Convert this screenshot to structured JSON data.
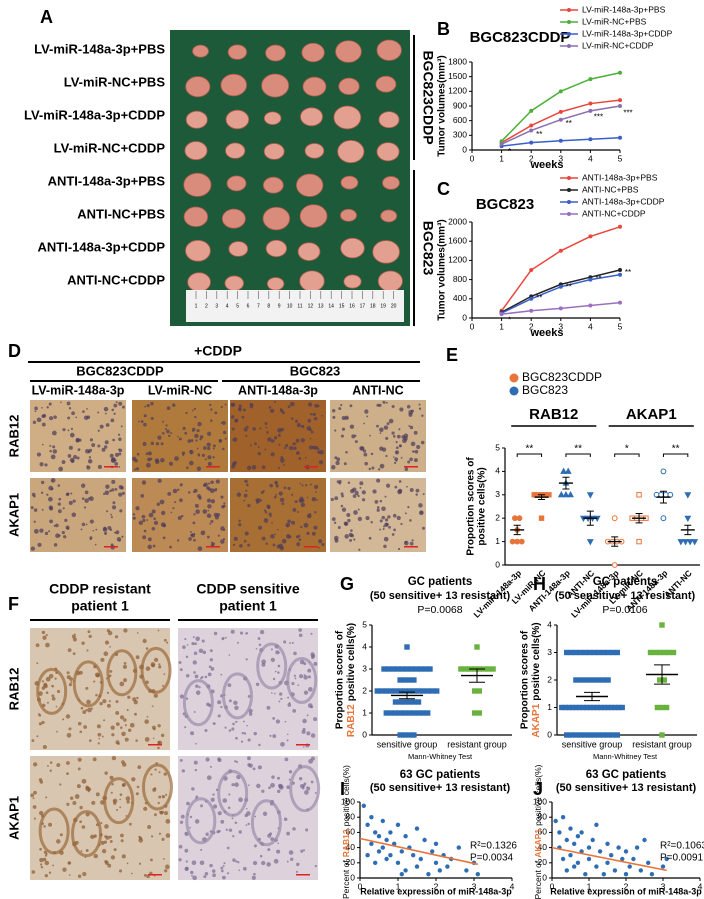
{
  "panel_letters": [
    "A",
    "B",
    "C",
    "D",
    "E",
    "F",
    "G",
    "H",
    "I",
    "J"
  ],
  "panel_a": {
    "rows": [
      "LV-miR-148a-3p+PBS",
      "LV-miR-NC+PBS",
      "LV-miR-148a-3p+CDDP",
      "LV-miR-NC+CDDP",
      "ANTI-148a-3p+PBS",
      "ANTI-NC+PBS",
      "ANTI-148a-3p+CDDP",
      "ANTI-NC+CDDP"
    ],
    "groups": [
      "BGC823CDDP",
      "BGC823"
    ],
    "ruler": [
      1,
      2,
      3,
      4,
      5,
      6,
      7,
      8,
      9,
      10,
      11,
      12,
      13,
      14,
      15,
      16,
      17,
      18,
      19,
      20
    ]
  },
  "panel_d": {
    "treatment": "+CDDP",
    "groups": [
      "BGC823CDDP",
      "BGC823"
    ],
    "columns": [
      "LV-miR-148a-3p",
      "LV-miR-NC",
      "ANTI-148a-3p",
      "ANTI-NC"
    ],
    "rows": [
      "RAB12",
      "AKAP1"
    ]
  },
  "panel_f": {
    "columns": [
      [
        "CDDP resistant",
        "patient 1"
      ],
      [
        "CDDP sensitive",
        "patient 1"
      ]
    ],
    "rows": [
      "RAB12",
      "AKAP1"
    ]
  },
  "chart_data": [
    {
      "type": "line",
      "title": "BGC823CDDP",
      "xlabel": "weeks",
      "ylabel": "Tumor volumes(mm³)",
      "x": [
        1,
        2,
        3,
        4,
        5
      ],
      "xlim": [
        0,
        5
      ],
      "xticks": [
        0,
        1,
        2,
        3,
        4,
        5
      ],
      "ylim": [
        0,
        1800
      ],
      "yticks": [
        0,
        300,
        600,
        900,
        1200,
        1500,
        1800
      ],
      "series": [
        {
          "name": "LV-miR-148a-3p+PBS",
          "color": "#e8473b",
          "values": [
            150,
            500,
            780,
            950,
            1020
          ]
        },
        {
          "name": "LV-miR-NC+PBS",
          "color": "#4caf3a",
          "values": [
            180,
            800,
            1200,
            1450,
            1580
          ]
        },
        {
          "name": "LV-miR-148a-3p+CDDP",
          "color": "#3a5fc8",
          "values": [
            80,
            150,
            190,
            220,
            250
          ]
        },
        {
          "name": "LV-miR-NC+CDDP",
          "color": "#8a6fb0",
          "values": [
            120,
            400,
            620,
            800,
            900
          ]
        }
      ],
      "annotations": [
        "*",
        "**",
        "**",
        "***",
        "***"
      ]
    },
    {
      "type": "line",
      "title": "BGC823",
      "xlabel": "weeks",
      "ylabel": "Tumor volumes(mm³)",
      "x": [
        1,
        2,
        3,
        4,
        5
      ],
      "xlim": [
        0,
        5
      ],
      "xticks": [
        0,
        1,
        2,
        3,
        4,
        5
      ],
      "ylim": [
        0,
        2000
      ],
      "yticks": [
        0,
        400,
        800,
        1200,
        1600,
        2000
      ],
      "series": [
        {
          "name": "ANTI-148a-3p+PBS",
          "color": "#e8473b",
          "values": [
            150,
            1000,
            1400,
            1700,
            1900
          ]
        },
        {
          "name": "ANTI-NC+PBS",
          "color": "#222222",
          "values": [
            120,
            450,
            700,
            850,
            1000
          ]
        },
        {
          "name": "ANTI-148a-3p+CDDP",
          "color": "#3a5fc8",
          "values": [
            100,
            400,
            650,
            800,
            900
          ]
        },
        {
          "name": "ANTI-NC+CDDP",
          "color": "#9b6fc0",
          "values": [
            80,
            150,
            200,
            260,
            320
          ]
        }
      ],
      "annotations": [
        "*",
        "**",
        "**",
        "**",
        "**"
      ]
    },
    {
      "type": "dot",
      "ylabel": [
        "Proportion scores of",
        "positive cells(%)"
      ],
      "legend": [
        {
          "name": "BGC823CDDP",
          "color": "#e8743b"
        },
        {
          "name": "BGC823",
          "color": "#2e6db4"
        }
      ],
      "groups": [
        "RAB12",
        "AKAP1"
      ],
      "categories": [
        "LV-miR-148a-3p",
        "LV-miR-NC",
        "ANTI-148a-3p",
        "ANTI-NC",
        "LV-miR-148a-3p",
        "LV-miR-NC",
        "ANTI-148a-3p",
        "ANTI-NC"
      ],
      "colors": [
        "#e8743b",
        "#e8743b",
        "#2e6db4",
        "#2e6db4",
        "#e8743b",
        "#e8743b",
        "#2e6db4",
        "#2e6db4"
      ],
      "points": [
        [
          1,
          1,
          1,
          1.5,
          2,
          2
        ],
        [
          2,
          3,
          3,
          3,
          3,
          3
        ],
        [
          3,
          3,
          3,
          3.5,
          4,
          4
        ],
        [
          1,
          2,
          2,
          2,
          2,
          3
        ],
        [
          0,
          1,
          1,
          1,
          1,
          2
        ],
        [
          1,
          2,
          2,
          2,
          2,
          3
        ],
        [
          2,
          3,
          3,
          3,
          3,
          4
        ],
        [
          1,
          1,
          1,
          1,
          2,
          3
        ]
      ],
      "means": [
        1.5,
        2.9,
        3.5,
        2.0,
        1.0,
        2.0,
        2.9,
        1.5
      ],
      "sems": [
        0.2,
        0.1,
        0.25,
        0.3,
        0.2,
        0.2,
        0.25,
        0.2
      ],
      "ylim": [
        0,
        5
      ],
      "yticks": [
        0,
        1,
        2,
        3,
        4,
        5
      ],
      "annotations": [
        "**",
        "**",
        "*",
        "**"
      ]
    },
    {
      "type": "dot",
      "title": "GC patients",
      "subtitle": "(50 sensitive+ 13 resistant)",
      "ylabel": [
        "Proportion scores of",
        "RAB12",
        "positive cells(%)"
      ],
      "highlight": "#e8743b",
      "xlabel": "Mann-Whitney Test",
      "categories": [
        "sensitive group",
        "resistant group"
      ],
      "colors": [
        "#2e6db4",
        "#6ab23e"
      ],
      "points": [
        [
          0,
          0,
          0,
          0,
          1,
          1,
          1,
          1,
          1,
          1,
          1,
          1,
          1,
          1,
          1.5,
          1.5,
          1.5,
          1.5,
          1.5,
          1.5,
          2,
          2,
          2,
          2,
          2,
          2,
          2,
          2,
          2,
          2,
          2,
          2,
          2,
          2,
          2.5,
          2.5,
          2.5,
          2.5,
          3,
          3,
          3,
          3,
          3,
          3,
          3,
          3,
          3,
          3,
          3,
          4
        ],
        [
          1,
          1,
          2,
          2,
          3,
          3,
          3,
          3,
          3,
          3,
          3,
          3,
          4
        ]
      ],
      "means": [
        1.8,
        2.7
      ],
      "sems": [
        0.15,
        0.3
      ],
      "ylim": [
        0,
        5
      ],
      "yticks": [
        0,
        1,
        2,
        3,
        4,
        5
      ],
      "annotations": [
        "P=0.0068"
      ]
    },
    {
      "type": "dot",
      "title": "GC patients",
      "subtitle": "(50 sensitive+ 13 resistant)",
      "ylabel": [
        "Proportion scores of",
        "AKAP1",
        "positive cells(%)"
      ],
      "highlight": "#e8743b",
      "xlabel": "Mann-Whitney Test",
      "categories": [
        "sensitive group",
        "resistant group"
      ],
      "colors": [
        "#2e6db4",
        "#6ab23e"
      ],
      "points": [
        [
          0,
          0,
          0,
          0,
          0,
          0,
          0,
          0,
          0,
          0,
          0,
          0,
          1,
          1,
          1,
          1,
          1,
          1,
          1,
          1,
          1,
          1,
          1,
          1,
          1,
          1,
          1,
          1,
          1,
          1,
          2,
          2,
          2,
          2,
          2,
          2,
          2,
          2,
          3,
          3,
          3,
          3,
          3,
          3,
          3,
          3,
          3,
          3,
          3,
          3
        ],
        [
          0,
          1,
          1,
          1,
          2,
          2,
          3,
          3,
          3,
          3,
          3,
          3,
          4
        ]
      ],
      "means": [
        1.4,
        2.2
      ],
      "sems": [
        0.15,
        0.35
      ],
      "ylim": [
        0,
        4
      ],
      "yticks": [
        0,
        1,
        2,
        3,
        4
      ],
      "annotations": [
        "P=0.0106"
      ]
    },
    {
      "type": "scatter",
      "title": "63 GC patients",
      "subtitle": "(50 sensitive+ 13 resistant)",
      "ylabel": [
        "Percent of",
        "RAB12",
        "positive cells(%)"
      ],
      "highlight": "#e8743b",
      "xlabel": "Relative expression of miR-148a-3p",
      "color": "#2e6db4",
      "x": [
        0.1,
        0.2,
        0.2,
        0.3,
        0.3,
        0.4,
        0.4,
        0.5,
        0.5,
        0.6,
        0.6,
        0.7,
        0.7,
        0.8,
        0.8,
        0.9,
        1.0,
        1.0,
        1.1,
        1.2,
        1.2,
        1.3,
        1.4,
        1.5,
        1.5,
        1.6,
        1.7,
        1.8,
        1.9,
        2.0,
        2.0,
        2.1,
        2.2,
        2.3,
        2.4,
        2.6,
        2.8,
        3.0,
        3.1,
        1.1
      ],
      "values": [
        95,
        70,
        30,
        80,
        45,
        60,
        20,
        55,
        35,
        75,
        40,
        50,
        25,
        60,
        30,
        45,
        70,
        20,
        35,
        55,
        10,
        40,
        30,
        65,
        15,
        25,
        50,
        5,
        35,
        20,
        45,
        10,
        30,
        15,
        25,
        40,
        10,
        20,
        5,
        5
      ],
      "fit": {
        "color": "#e8743b",
        "x": [
          0,
          3.1
        ],
        "values": [
          52,
          18
        ]
      },
      "xlim": [
        0,
        4
      ],
      "xticks": [
        0,
        1,
        2,
        3,
        4
      ],
      "ylim": [
        0,
        100
      ],
      "yticks": [
        0,
        20,
        40,
        60,
        80,
        100
      ],
      "annotations": [
        "R²=0.1326",
        "P=0.0034"
      ]
    },
    {
      "type": "scatter",
      "title": "63 GC patients",
      "subtitle": "(50 sensitive+ 13 resistant)",
      "ylabel": [
        "Percent of",
        "AKAP1",
        "positive cells(%)"
      ],
      "highlight": "#e8743b",
      "xlabel": "Relative expression of miR-148a-3p",
      "color": "#2e6db4",
      "x": [
        0.1,
        0.2,
        0.2,
        0.3,
        0.3,
        0.4,
        0.4,
        0.5,
        0.5,
        0.6,
        0.6,
        0.7,
        0.7,
        0.8,
        0.9,
        1.0,
        1.0,
        1.1,
        1.2,
        1.3,
        1.4,
        1.5,
        1.5,
        1.6,
        1.7,
        1.8,
        1.9,
        2.0,
        2.0,
        2.1,
        2.2,
        2.3,
        2.4,
        2.5,
        2.6,
        2.7,
        3.0,
        3.1,
        0.8,
        1.2
      ],
      "values": [
        75,
        60,
        40,
        80,
        25,
        50,
        10,
        65,
        30,
        45,
        15,
        55,
        20,
        35,
        5,
        40,
        25,
        50,
        15,
        35,
        5,
        45,
        20,
        30,
        10,
        40,
        25,
        5,
        35,
        15,
        25,
        40,
        10,
        50,
        20,
        5,
        15,
        25,
        60,
        70
      ],
      "fit": {
        "color": "#e8743b",
        "x": [
          0,
          3.1
        ],
        "values": [
          40,
          10
        ]
      },
      "xlim": [
        0,
        4
      ],
      "xticks": [
        0,
        1,
        2,
        3,
        4
      ],
      "ylim": [
        0,
        100
      ],
      "yticks": [
        0,
        20,
        40,
        60,
        80,
        100
      ],
      "annotations": [
        "R²=0.1063",
        "P=0.0091"
      ]
    }
  ]
}
